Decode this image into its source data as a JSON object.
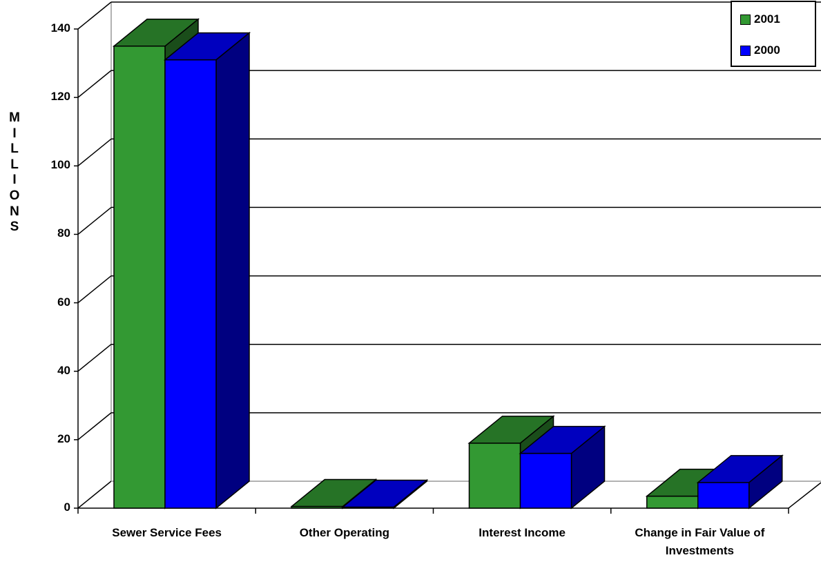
{
  "chart_data": {
    "type": "bar",
    "title": "",
    "xlabel": "",
    "ylabel": "MILLIONS",
    "ylim": [
      0,
      140
    ],
    "yticks": [
      0,
      20,
      40,
      60,
      80,
      100,
      120,
      140
    ],
    "categories": [
      "Sewer Service Fees",
      "Other Operating",
      "Interest Income",
      "Change in Fair Value of Investments"
    ],
    "series": [
      {
        "name": "2001",
        "values": [
          135,
          0.5,
          19,
          3.5
        ],
        "color": "#339933"
      },
      {
        "name": "2000",
        "values": [
          131,
          0.3,
          16,
          7.5
        ],
        "color": "#0000ff"
      }
    ],
    "legend_position": "top-right",
    "grid": true,
    "style": "3d"
  }
}
